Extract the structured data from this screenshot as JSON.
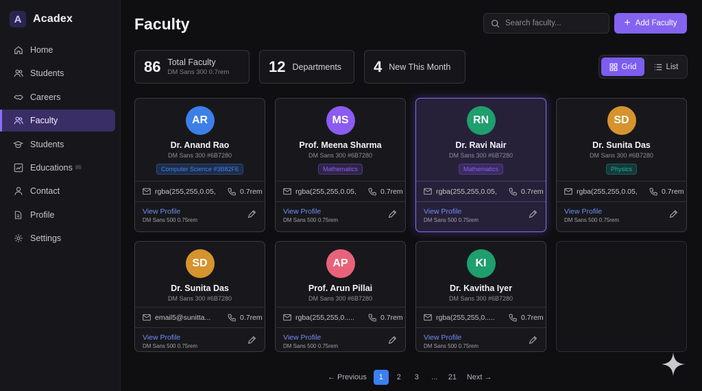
{
  "app": {
    "logo_letter": "A",
    "name": "Acadex"
  },
  "nav": [
    {
      "label": "Home",
      "icon": "home-icon"
    },
    {
      "label": "Students",
      "icon": "users-icon"
    },
    {
      "label": "Careers",
      "icon": "handshake-icon"
    },
    {
      "label": "Faculty",
      "icon": "faculty-icon",
      "active": true
    },
    {
      "label": "Students",
      "icon": "graduation-cap-icon"
    },
    {
      "label": "Educations",
      "icon": "chart-icon",
      "badge": "86"
    },
    {
      "label": "Contact",
      "icon": "person-icon"
    },
    {
      "label": "Profile",
      "icon": "document-icon"
    },
    {
      "label": "Settings",
      "icon": "gear-icon"
    }
  ],
  "header": {
    "title": "Faculty",
    "search_placeholder": "Search faculty...",
    "add_label": "Add Faculty"
  },
  "stats": [
    {
      "value": "86",
      "label": "Total Faculty",
      "sub": "DM Sans 300 0.7rem"
    },
    {
      "value": "12",
      "label": "Departments",
      "sub": ""
    },
    {
      "value": "4",
      "label": "New This Month",
      "sub": ""
    }
  ],
  "view_toggle": {
    "grid_label": "Grid",
    "list_label": "List",
    "selected": "Grid"
  },
  "cards": [
    {
      "initials": "AR",
      "name": "Dr. Anand Rao",
      "meta": "DM Sans 300 #6B7280",
      "tag": "Computer Science  #3B82F6",
      "tag_color": "#3b82f6",
      "email": "rgba(255,255,0.05,",
      "phone": "0.7rem",
      "link": "View Profile",
      "link_sub": "DM Sans 500 0.75rem",
      "avatar_color": "#3d7fe8"
    },
    {
      "initials": "MS",
      "name": "Prof. Meena Sharma",
      "meta": "DM Sans 300 #6B7280",
      "tag": "Mathematics",
      "tag_color": "#8b5cf6",
      "email": "rgba(255,255,0.05,",
      "phone": "0.7rem",
      "link": "View Profile",
      "link_sub": "DM Sans 500 0.75rem",
      "avatar_color": "#8b5cf0"
    },
    {
      "initials": "RN",
      "name": "Dr. Ravi Nair",
      "meta": "DM Sans 300 #6B7280",
      "tag": "Mathematics",
      "tag_color": "#8b5cf6",
      "email": "rgba(255,255,0.05,",
      "phone": "0.7rem",
      "link": "View Profile",
      "link_sub": "DM Sans 500 0.75rem",
      "avatar_color": "#1f9e6e",
      "selected": true
    },
    {
      "initials": "SD",
      "name": "Dr. Sunita Das",
      "meta": "DM Sans 300 #6B7280",
      "tag": "Physics",
      "tag_color": "#14b8a6",
      "email": "rgba(255,255,0.05,",
      "phone": "0.7rem",
      "link": "View Profile",
      "link_sub": "DM Sans 500 0.75rem",
      "avatar_color": "#d6932e"
    },
    {
      "initials": "SD",
      "name": "Dr. Sunita Das",
      "meta": "DM Sans 300 #6B7280",
      "tag": "",
      "email": "email5@sunitta...",
      "phone": "0.7rem",
      "link": "View Profile",
      "link_sub": "DM Sans 500 0.75rem",
      "avatar_color": "#d6932e"
    },
    {
      "initials": "AP",
      "name": "Prof. Arun Pillai",
      "meta": "DM Sans 300 #6B7280",
      "tag": "",
      "email": "rgba(255,255,0.....",
      "phone": "0.7rem",
      "link": "View Profile",
      "link_sub": "DM Sans 500 0.75rem",
      "avatar_color": "#e8637a"
    },
    {
      "initials": "KI",
      "name": "Dr. Kavitha Iyer",
      "meta": "DM Sans 300 #6B7280",
      "tag": "",
      "email": "rgba(255,255,0.....",
      "phone": "0.7rem",
      "link": "View Profile",
      "link_sub": "DM Sans 500 0.75rem",
      "avatar_color": "#1f9e6e"
    }
  ],
  "pagination": {
    "prev": "← Previous",
    "pages": [
      "1",
      "2",
      "3",
      "...",
      "21"
    ],
    "current": "1",
    "next": "Next →"
  }
}
